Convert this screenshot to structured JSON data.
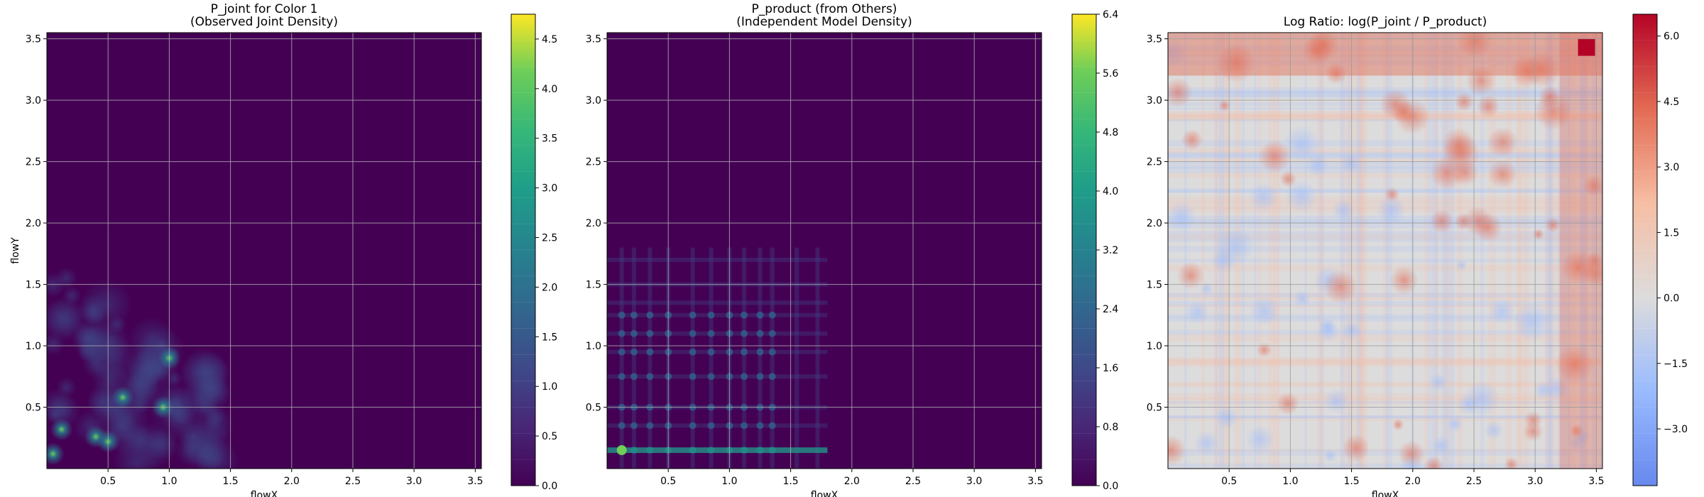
{
  "chart_data": [
    {
      "type": "heatmap",
      "title": [
        "P_joint for Color 1",
        "(Observed Joint Density)"
      ],
      "xlabel": "flowX",
      "ylabel": "flowY",
      "xlim": [
        0.0,
        3.55
      ],
      "ylim": [
        0.0,
        3.55
      ],
      "xticks": [
        "0.5",
        "1.0",
        "1.5",
        "2.0",
        "2.5",
        "3.0",
        "3.5"
      ],
      "yticks": [
        "0.5",
        "1.0",
        "1.5",
        "2.0",
        "2.5",
        "3.0",
        "3.5"
      ],
      "grid": true,
      "colormap": "viridis",
      "colorbar": {
        "range": [
          0.0,
          4.75
        ],
        "ticks": [
          "0.0",
          "0.5",
          "1.0",
          "1.5",
          "2.0",
          "2.5",
          "3.0",
          "3.5",
          "4.0",
          "4.5"
        ]
      }
    },
    {
      "type": "heatmap",
      "title": [
        "P_product (from Others)",
        "(Independent Model Density)"
      ],
      "xlabel": "flowX",
      "ylabel": "",
      "xlim": [
        0.0,
        3.55
      ],
      "ylim": [
        0.0,
        3.55
      ],
      "xticks": [
        "0.5",
        "1.0",
        "1.5",
        "2.0",
        "2.5",
        "3.0",
        "3.5"
      ],
      "yticks": [
        "0.5",
        "1.0",
        "1.5",
        "2.0",
        "2.5",
        "3.0",
        "3.5"
      ],
      "grid": true,
      "colormap": "viridis",
      "colorbar": {
        "range": [
          0.0,
          6.4
        ],
        "ticks": [
          "0.0",
          "0.8",
          "1.6",
          "2.4",
          "3.2",
          "4.0",
          "4.8",
          "5.6",
          "6.4"
        ]
      }
    },
    {
      "type": "heatmap",
      "title": [
        "Log Ratio: log(P_joint / P_product)"
      ],
      "xlabel": "flowX",
      "ylabel": "",
      "xlim": [
        0.0,
        3.55
      ],
      "ylim": [
        0.0,
        3.55
      ],
      "xticks": [
        "0.5",
        "1.0",
        "1.5",
        "2.0",
        "2.5",
        "3.0",
        "3.5"
      ],
      "yticks": [
        "0.5",
        "1.0",
        "1.5",
        "2.0",
        "2.5",
        "3.0",
        "3.5"
      ],
      "grid": true,
      "colormap": "coolwarm",
      "colorbar": {
        "range": [
          -4.3,
          6.5
        ],
        "ticks": [
          "−3.0",
          "−1.5",
          "0.0",
          "1.5",
          "3.0",
          "4.5",
          "6.0"
        ]
      }
    }
  ]
}
